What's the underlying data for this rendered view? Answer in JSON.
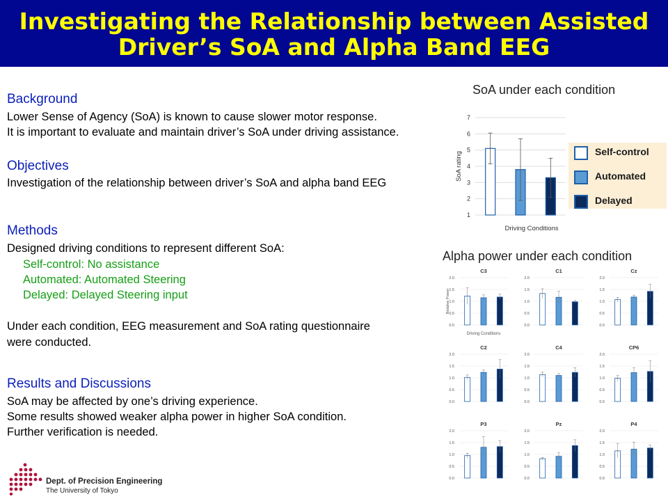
{
  "title": {
    "line1": "Investigating the Relationship between Assisted",
    "line2": "Driver’s SoA and Alpha Band EEG"
  },
  "background": {
    "heading": "Background",
    "lines": [
      "Lower Sense of Agency (SoA) is known to cause slower motor response.",
      "It is important to evaluate and maintain driver’s SoA under driving assistance."
    ]
  },
  "objectives": {
    "heading": "Objectives",
    "lines": [
      "Investigation of the relationship between driver’s SoA and alpha band EEG"
    ]
  },
  "methods": {
    "heading": "Methods",
    "lines": [
      "Designed driving conditions to represent different SoA:"
    ],
    "conditions": [
      "Self-control: No assistance",
      "Automated: Automated Steering",
      "Delayed: Delayed Steering input"
    ],
    "extra": [
      "Under each condition, EEG measurement and SoA rating questionnaire",
      "were conducted."
    ]
  },
  "results": {
    "heading": "Results and Discussions",
    "lines": [
      "SoA may be affected by one’s driving experience.",
      "Some results showed weaker alpha power in higher SoA condition.",
      "Further verification is needed."
    ]
  },
  "colors": {
    "self_control_fill": "#ffffff",
    "self_control_edge": "#1f5fa8",
    "automated": "#5b9bd5",
    "delayed": "#0b2a5c",
    "title_bg": "#010790",
    "title_text": "#ffff00",
    "heading": "#0b1fb8",
    "condition_text": "#169e16"
  },
  "legend": {
    "items": [
      {
        "label": "Self-control",
        "color": "#ffffff"
      },
      {
        "label": "Automated",
        "color": "#5b9bd5"
      },
      {
        "label": "Delayed",
        "color": "#0b2a5c"
      }
    ]
  },
  "logo": {
    "line1": "Dept. of Precision Engineering",
    "line2": "The University of Tokyo",
    "icon": "dot-triangle-logo"
  },
  "chart_data": [
    {
      "type": "bar",
      "title": "SoA under each condition",
      "xlabel": "Driving Conditions",
      "ylabel": "SoA rating",
      "ylim": [
        1,
        7
      ],
      "yticks": [
        "1",
        "2",
        "3",
        "4",
        "5",
        "6",
        "7"
      ],
      "categories": [
        "Self-control",
        "Automated",
        "Delayed"
      ],
      "values": [
        5.1,
        3.8,
        3.3
      ],
      "errors": [
        0.95,
        1.9,
        1.2
      ],
      "grid": true
    },
    {
      "type": "bar",
      "title": "Alpha power under each condition",
      "ylabel": "Relative Power",
      "xlabel": "Driving Conditions",
      "ylim": [
        0,
        2
      ],
      "yticks": [
        "0.0",
        "0.5",
        "1.0",
        "1.5",
        "2.0"
      ],
      "categories": [
        "Self-control",
        "Automated",
        "Delayed"
      ],
      "panels": [
        {
          "name": "C3",
          "values": [
            1.22,
            1.15,
            1.18
          ],
          "errors": [
            0.35,
            0.12,
            0.12
          ]
        },
        {
          "name": "C1",
          "values": [
            1.33,
            1.17,
            0.98
          ],
          "errors": [
            0.2,
            0.25,
            0.05
          ]
        },
        {
          "name": "Cz",
          "values": [
            1.07,
            1.18,
            1.42
          ],
          "errors": [
            0.1,
            0.08,
            0.3
          ]
        },
        {
          "name": "C2",
          "values": [
            1.02,
            1.23,
            1.37
          ],
          "errors": [
            0.1,
            0.1,
            0.4
          ]
        },
        {
          "name": "C4",
          "values": [
            1.14,
            1.1,
            1.23
          ],
          "errors": [
            0.1,
            0.08,
            0.2
          ]
        },
        {
          "name": "CP6",
          "values": [
            0.98,
            1.22,
            1.27
          ],
          "errors": [
            0.12,
            0.2,
            0.45
          ]
        },
        {
          "name": "P3",
          "values": [
            0.95,
            1.3,
            1.33
          ],
          "errors": [
            0.1,
            0.45,
            0.25
          ]
        },
        {
          "name": "Pz",
          "values": [
            0.82,
            0.92,
            1.37
          ],
          "errors": [
            0.05,
            0.15,
            0.25
          ]
        },
        {
          "name": "P4",
          "values": [
            1.15,
            1.22,
            1.27
          ],
          "errors": [
            0.3,
            0.3,
            0.12
          ]
        }
      ]
    }
  ]
}
